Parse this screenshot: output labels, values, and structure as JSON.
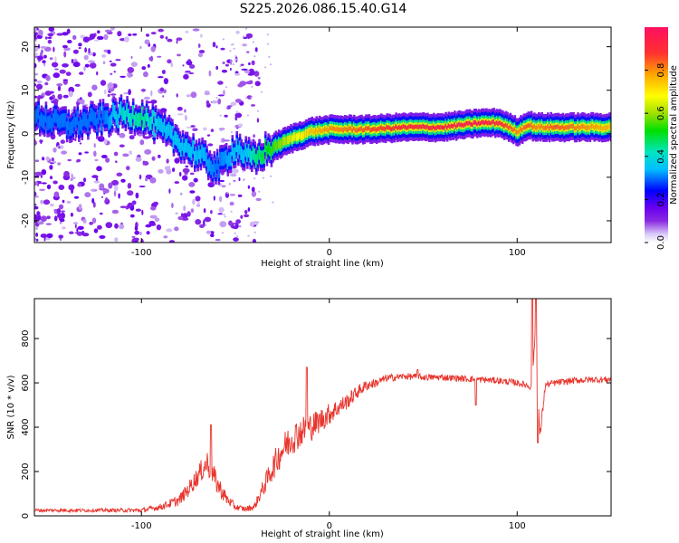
{
  "figure": {
    "title": "S225.2026.086.15.40.G14"
  },
  "colors": {
    "snr_line": "#e8352d",
    "frame": "#000000",
    "colormap": [
      "#ffffff",
      "#d8c8f8",
      "#8a2be2",
      "#6a00f0",
      "#0000ff",
      "#00bfff",
      "#00e5c0",
      "#00e000",
      "#a0e000",
      "#ffff00",
      "#ffa500",
      "#ff3030",
      "#ff1060"
    ]
  },
  "chart_data": [
    {
      "type": "heatmap",
      "title": "S225.2026.086.15.40.G14",
      "xlabel": "Height of straight line (km)",
      "ylabel": "Frequency (Hz)",
      "xlim": [
        -157,
        150
      ],
      "ylim": [
        -25,
        24.5
      ],
      "xticks": [
        -100,
        0,
        100
      ],
      "xtick_labels": [
        "-100",
        "0",
        "100"
      ],
      "yticks": [
        -20,
        -10,
        0,
        10,
        20
      ],
      "ytick_labels": [
        "-20",
        "-10",
        "0",
        "10",
        "20"
      ],
      "colorbar": {
        "label": "Normalized spectral amplitude",
        "range": [
          0,
          1
        ],
        "ticks": [
          0.0,
          0.2,
          0.4,
          0.6,
          0.8
        ],
        "tick_labels": [
          "0.0",
          "0.2",
          "0.4",
          "0.6",
          "0.8"
        ]
      },
      "ridge": {
        "x": [
          -157,
          -140,
          -120,
          -110,
          -100,
          -90,
          -80,
          -70,
          -60,
          -50,
          -45,
          -40,
          -35,
          -30,
          -20,
          -10,
          0,
          10,
          20,
          40,
          60,
          80,
          90,
          95,
          100,
          105,
          110,
          120,
          150
        ],
        "y": [
          4,
          2,
          3.5,
          4.5,
          4,
          1,
          -2,
          -5,
          -8,
          -3,
          -5,
          -6,
          -4,
          -3,
          -1,
          0.5,
          1,
          1,
          1,
          1.5,
          1.5,
          2.5,
          2.5,
          1.5,
          0.5,
          2,
          1.5,
          1.5,
          1.5
        ],
        "amplitude": [
          0.3,
          0.3,
          0.3,
          0.4,
          0.45,
          0.35,
          0.35,
          0.35,
          0.3,
          0.35,
          0.35,
          0.45,
          0.5,
          0.55,
          0.65,
          0.75,
          0.8,
          0.82,
          0.85,
          0.9,
          0.92,
          0.95,
          0.9,
          0.85,
          0.8,
          0.85,
          0.8,
          0.85,
          0.75
        ]
      }
    },
    {
      "type": "line",
      "xlabel": "Height of straight line (km)",
      "ylabel": "SNR (10 * v/v)",
      "xlim": [
        -157,
        150
      ],
      "ylim": [
        0,
        980
      ],
      "xticks": [
        -100,
        0,
        100
      ],
      "xtick_labels": [
        "-100",
        "0",
        "100"
      ],
      "yticks": [
        0,
        200,
        400,
        600,
        800
      ],
      "ytick_labels": [
        "0",
        "200",
        "400",
        "600",
        "800"
      ],
      "series": [
        {
          "name": "SNR",
          "x": [
            -157,
            -140,
            -120,
            -100,
            -90,
            -80,
            -75,
            -70,
            -65,
            -60,
            -55,
            -50,
            -45,
            -40,
            -35,
            -30,
            -25,
            -20,
            -15,
            -10,
            -5,
            0,
            5,
            10,
            15,
            20,
            25,
            30,
            40,
            50,
            60,
            70,
            80,
            90,
            100,
            105,
            108,
            110,
            112,
            115,
            120,
            130,
            140,
            150
          ],
          "y": [
            25,
            25,
            25,
            25,
            40,
            70,
            120,
            180,
            240,
            150,
            80,
            40,
            30,
            40,
            130,
            220,
            300,
            350,
            380,
            400,
            430,
            460,
            490,
            520,
            560,
            590,
            600,
            620,
            630,
            625,
            625,
            620,
            615,
            610,
            600,
            590,
            580,
            900,
            350,
            590,
            600,
            610,
            615,
            615
          ],
          "noise": [
            8,
            8,
            8,
            10,
            15,
            25,
            35,
            45,
            60,
            50,
            30,
            15,
            12,
            15,
            40,
            60,
            70,
            75,
            70,
            65,
            55,
            50,
            40,
            35,
            30,
            25,
            20,
            18,
            15,
            15,
            15,
            15,
            15,
            15,
            15,
            15,
            15,
            30,
            30,
            15,
            15,
            15,
            15,
            15
          ],
          "spikes": [
            {
              "x": -63,
              "y": 410
            },
            {
              "x": -12,
              "y": 670
            },
            {
              "x": 47,
              "y": 660
            },
            {
              "x": 78,
              "y": 500
            },
            {
              "x": 108,
              "y": 980
            },
            {
              "x": 110,
              "y": 980
            },
            {
              "x": 111,
              "y": 330
            }
          ]
        }
      ]
    }
  ]
}
